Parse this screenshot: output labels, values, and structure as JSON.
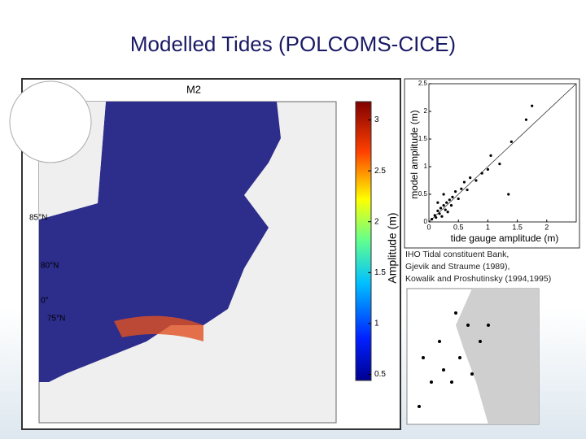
{
  "title": "Modelled Tides (POLCOMS-CICE)",
  "map": {
    "title": "M2",
    "colorbar_label": "Amplitude (m)",
    "clim": [
      0.44,
      3.18
    ],
    "colorbar_ticks": [
      0.5,
      1,
      1.5,
      2,
      2.5,
      3
    ],
    "lat_labels": [
      "85°N",
      "80°N",
      "75°N"
    ],
    "lon_label": "0°"
  },
  "chart_data": {
    "type": "scatter",
    "xlabel": "tide gauge amplitude (m)",
    "ylabel": "model amplitude (m)",
    "xlim": [
      0,
      2.5
    ],
    "ylim": [
      0,
      2.5
    ],
    "xticks": [
      0,
      0.5,
      1,
      1.5,
      2
    ],
    "yticks": [
      0,
      0.5,
      1,
      1.5,
      2,
      2.5
    ],
    "color": "#000000",
    "x": [
      0.05,
      0.1,
      0.12,
      0.15,
      0.18,
      0.2,
      0.22,
      0.25,
      0.28,
      0.3,
      0.32,
      0.35,
      0.38,
      0.4,
      0.45,
      0.5,
      0.55,
      0.6,
      0.65,
      0.7,
      0.8,
      0.9,
      1.0,
      1.05,
      1.2,
      1.35,
      1.4,
      1.65,
      1.75,
      0.15,
      0.25
    ],
    "y": [
      0.05,
      0.12,
      0.08,
      0.2,
      0.15,
      0.25,
      0.1,
      0.3,
      0.22,
      0.35,
      0.18,
      0.4,
      0.3,
      0.45,
      0.55,
      0.42,
      0.6,
      0.72,
      0.58,
      0.8,
      0.75,
      0.88,
      0.95,
      1.2,
      1.05,
      0.5,
      1.45,
      1.85,
      2.1,
      0.35,
      0.5
    ]
  },
  "caption": [
    "IHO Tidal constituent Bank,",
    "Gjevik and Straume (1989),",
    "Kowalik and Proshutinsky (1994,1995)"
  ]
}
